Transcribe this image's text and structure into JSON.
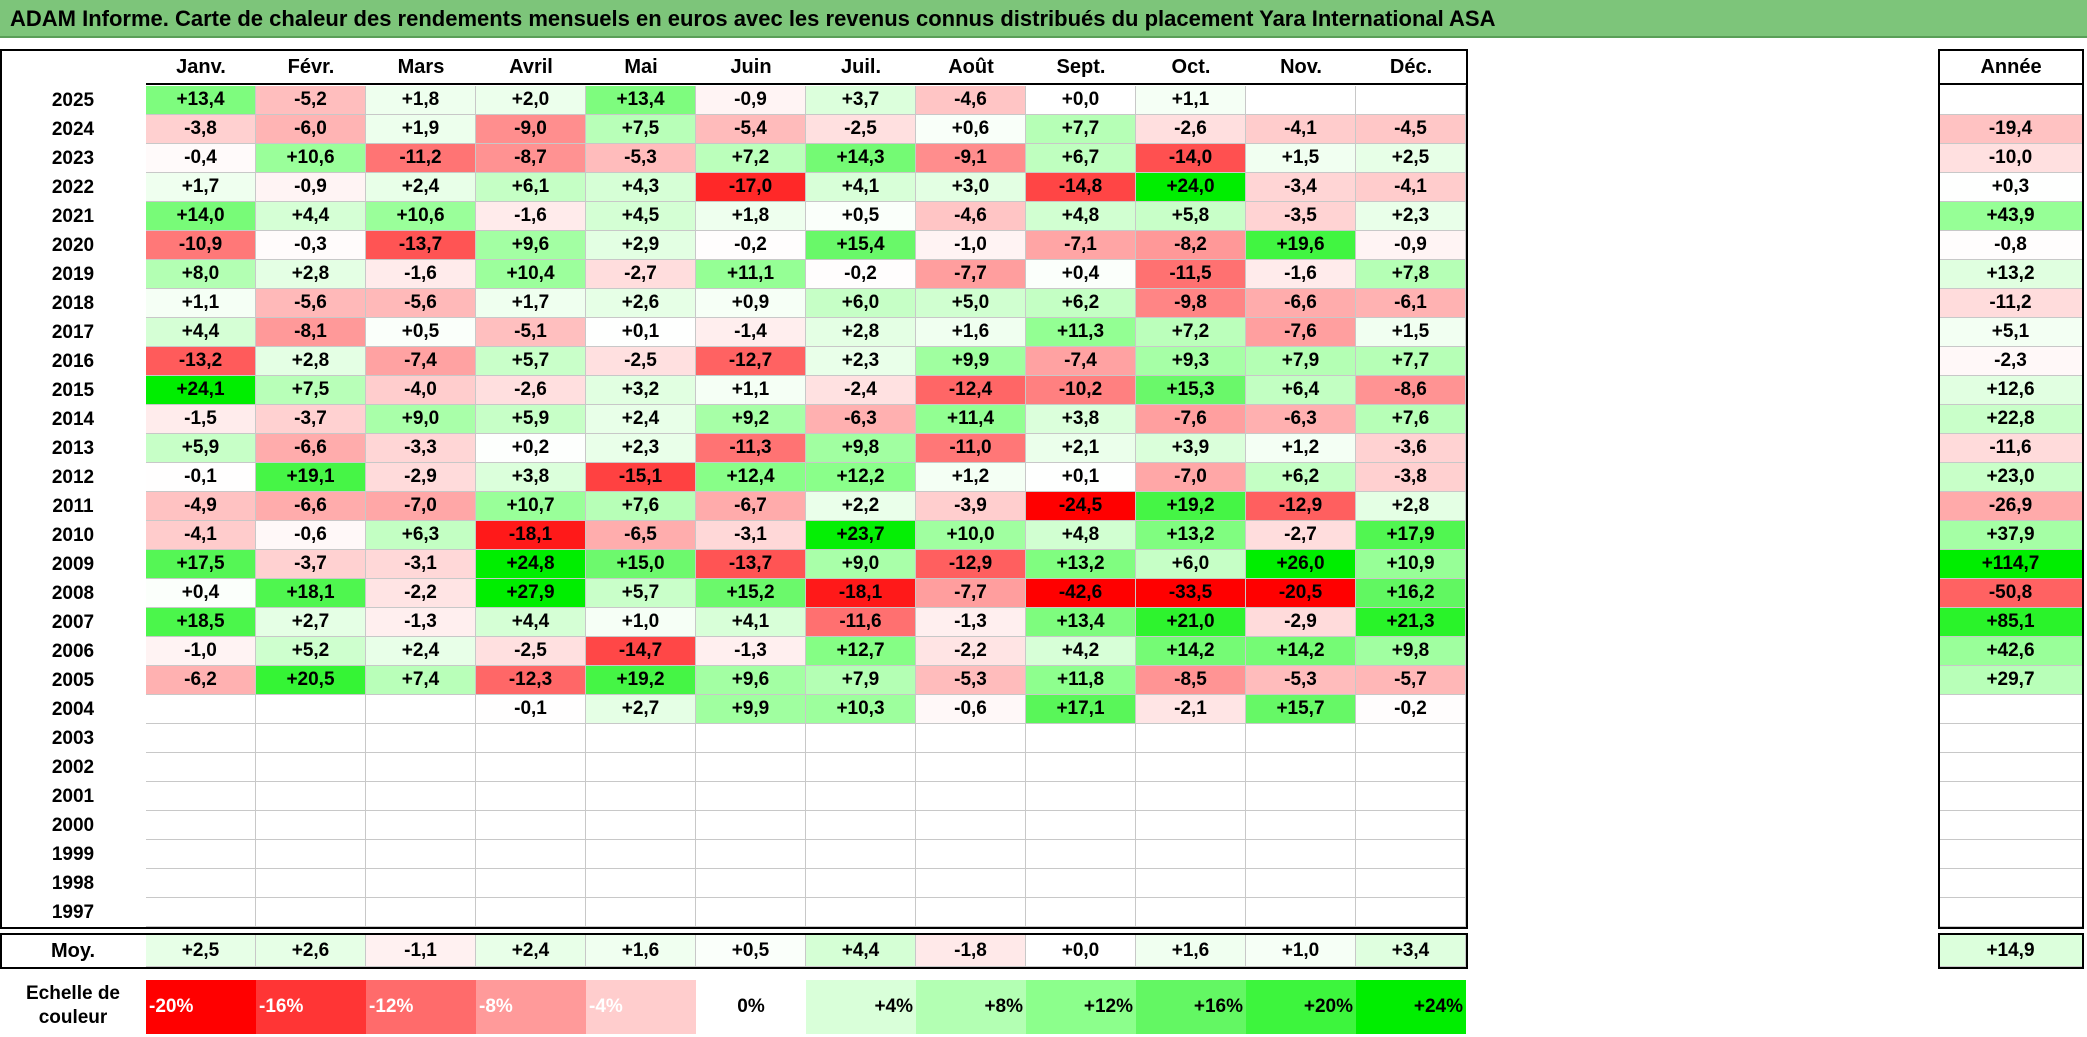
{
  "title": "ADAM Informe. Carte de chaleur des rendements mensuels en euros avec les revenus connus distribués du placement Yara International ASA",
  "chart_data": {
    "type": "heatmap",
    "title": "ADAM Informe. Carte de chaleur des rendements mensuels en euros avec les revenus connus distribués du placement Yara International ASA",
    "columns": [
      "Janv.",
      "Févr.",
      "Mars",
      "Avril",
      "Mai",
      "Juin",
      "Juil.",
      "Août",
      "Sept.",
      "Oct.",
      "Nov.",
      "Déc."
    ],
    "year_column_label": "Année",
    "rows": [
      {
        "year": "2025",
        "values": [
          "+13,4",
          "-5,2",
          "+1,8",
          "+2,0",
          "+13,4",
          "-0,9",
          "+3,7",
          "-4,6",
          "+0,0",
          "+1,1",
          "",
          ""
        ],
        "annual": ""
      },
      {
        "year": "2024",
        "values": [
          "-3,8",
          "-6,0",
          "+1,9",
          "-9,0",
          "+7,5",
          "-5,4",
          "-2,5",
          "+0,6",
          "+7,7",
          "-2,6",
          "-4,1",
          "-4,5"
        ],
        "annual": "-19,4"
      },
      {
        "year": "2023",
        "values": [
          "-0,4",
          "+10,6",
          "-11,2",
          "-8,7",
          "-5,3",
          "+7,2",
          "+14,3",
          "-9,1",
          "+6,7",
          "-14,0",
          "+1,5",
          "+2,5"
        ],
        "annual": "-10,0"
      },
      {
        "year": "2022",
        "values": [
          "+1,7",
          "-0,9",
          "+2,4",
          "+6,1",
          "+4,3",
          "-17,0",
          "+4,1",
          "+3,0",
          "-14,8",
          "+24,0",
          "-3,4",
          "-4,1"
        ],
        "annual": "+0,3"
      },
      {
        "year": "2021",
        "values": [
          "+14,0",
          "+4,4",
          "+10,6",
          "-1,6",
          "+4,5",
          "+1,8",
          "+0,5",
          "-4,6",
          "+4,8",
          "+5,8",
          "-3,5",
          "+2,3"
        ],
        "annual": "+43,9"
      },
      {
        "year": "2020",
        "values": [
          "-10,9",
          "-0,3",
          "-13,7",
          "+9,6",
          "+2,9",
          "-0,2",
          "+15,4",
          "-1,0",
          "-7,1",
          "-8,2",
          "+19,6",
          "-0,9"
        ],
        "annual": "-0,8"
      },
      {
        "year": "2019",
        "values": [
          "+8,0",
          "+2,8",
          "-1,6",
          "+10,4",
          "-2,7",
          "+11,1",
          "-0,2",
          "-7,7",
          "+0,4",
          "-11,5",
          "-1,6",
          "+7,8"
        ],
        "annual": "+13,2"
      },
      {
        "year": "2018",
        "values": [
          "+1,1",
          "-5,6",
          "-5,6",
          "+1,7",
          "+2,6",
          "+0,9",
          "+6,0",
          "+5,0",
          "+6,2",
          "-9,8",
          "-6,6",
          "-6,1"
        ],
        "annual": "-11,2"
      },
      {
        "year": "2017",
        "values": [
          "+4,4",
          "-8,1",
          "+0,5",
          "-5,1",
          "+0,1",
          "-1,4",
          "+2,8",
          "+1,6",
          "+11,3",
          "+7,2",
          "-7,6",
          "+1,5"
        ],
        "annual": "+5,1"
      },
      {
        "year": "2016",
        "values": [
          "-13,2",
          "+2,8",
          "-7,4",
          "+5,7",
          "-2,5",
          "-12,7",
          "+2,3",
          "+9,9",
          "-7,4",
          "+9,3",
          "+7,9",
          "+7,7"
        ],
        "annual": "-2,3"
      },
      {
        "year": "2015",
        "values": [
          "+24,1",
          "+7,5",
          "-4,0",
          "-2,6",
          "+3,2",
          "+1,1",
          "-2,4",
          "-12,4",
          "-10,2",
          "+15,3",
          "+6,4",
          "-8,6"
        ],
        "annual": "+12,6"
      },
      {
        "year": "2014",
        "values": [
          "-1,5",
          "-3,7",
          "+9,0",
          "+5,9",
          "+2,4",
          "+9,2",
          "-6,3",
          "+11,4",
          "+3,8",
          "-7,6",
          "-6,3",
          "+7,6"
        ],
        "annual": "+22,8"
      },
      {
        "year": "2013",
        "values": [
          "+5,9",
          "-6,6",
          "-3,3",
          "+0,2",
          "+2,3",
          "-11,3",
          "+9,8",
          "-11,0",
          "+2,1",
          "+3,9",
          "+1,2",
          "-3,6"
        ],
        "annual": "-11,6"
      },
      {
        "year": "2012",
        "values": [
          "-0,1",
          "+19,1",
          "-2,9",
          "+3,8",
          "-15,1",
          "+12,4",
          "+12,2",
          "+1,2",
          "+0,1",
          "-7,0",
          "+6,2",
          "-3,8"
        ],
        "annual": "+23,0"
      },
      {
        "year": "2011",
        "values": [
          "-4,9",
          "-6,6",
          "-7,0",
          "+10,7",
          "+7,6",
          "-6,7",
          "+2,2",
          "-3,9",
          "-24,5",
          "+19,2",
          "-12,9",
          "+2,8"
        ],
        "annual": "-26,9"
      },
      {
        "year": "2010",
        "values": [
          "-4,1",
          "-0,6",
          "+6,3",
          "-18,1",
          "-6,5",
          "-3,1",
          "+23,7",
          "+10,0",
          "+4,8",
          "+13,2",
          "-2,7",
          "+17,9"
        ],
        "annual": "+37,9"
      },
      {
        "year": "2009",
        "values": [
          "+17,5",
          "-3,7",
          "-3,1",
          "+24,8",
          "+15,0",
          "-13,7",
          "+9,0",
          "-12,9",
          "+13,2",
          "+6,0",
          "+26,0",
          "+10,9"
        ],
        "annual": "+114,7"
      },
      {
        "year": "2008",
        "values": [
          "+0,4",
          "+18,1",
          "-2,2",
          "+27,9",
          "+5,7",
          "+15,2",
          "-18,1",
          "-7,7",
          "-42,6",
          "-33,5",
          "-20,5",
          "+16,2"
        ],
        "annual": "-50,8"
      },
      {
        "year": "2007",
        "values": [
          "+18,5",
          "+2,7",
          "-1,3",
          "+4,4",
          "+1,0",
          "+4,1",
          "-11,6",
          "-1,3",
          "+13,4",
          "+21,0",
          "-2,9",
          "+21,3"
        ],
        "annual": "+85,1"
      },
      {
        "year": "2006",
        "values": [
          "-1,0",
          "+5,2",
          "+2,4",
          "-2,5",
          "-14,7",
          "-1,3",
          "+12,7",
          "-2,2",
          "+4,2",
          "+14,2",
          "+14,2",
          "+9,8"
        ],
        "annual": "+42,6"
      },
      {
        "year": "2005",
        "values": [
          "-6,2",
          "+20,5",
          "+7,4",
          "-12,3",
          "+19,2",
          "+9,6",
          "+7,9",
          "-5,3",
          "+11,8",
          "-8,5",
          "-5,3",
          "-5,7"
        ],
        "annual": "+29,7"
      },
      {
        "year": "2004",
        "values": [
          "",
          "",
          "",
          "-0,1",
          "+2,7",
          "+9,9",
          "+10,3",
          "-0,6",
          "+17,1",
          "-2,1",
          "+15,7",
          "-0,2"
        ],
        "annual": ""
      },
      {
        "year": "2003",
        "values": [
          "",
          "",
          "",
          "",
          "",
          "",
          "",
          "",
          "",
          "",
          "",
          ""
        ],
        "annual": ""
      },
      {
        "year": "2002",
        "values": [
          "",
          "",
          "",
          "",
          "",
          "",
          "",
          "",
          "",
          "",
          "",
          ""
        ],
        "annual": ""
      },
      {
        "year": "2001",
        "values": [
          "",
          "",
          "",
          "",
          "",
          "",
          "",
          "",
          "",
          "",
          "",
          ""
        ],
        "annual": ""
      },
      {
        "year": "2000",
        "values": [
          "",
          "",
          "",
          "",
          "",
          "",
          "",
          "",
          "",
          "",
          "",
          ""
        ],
        "annual": ""
      },
      {
        "year": "1999",
        "values": [
          "",
          "",
          "",
          "",
          "",
          "",
          "",
          "",
          "",
          "",
          "",
          ""
        ],
        "annual": ""
      },
      {
        "year": "1998",
        "values": [
          "",
          "",
          "",
          "",
          "",
          "",
          "",
          "",
          "",
          "",
          "",
          ""
        ],
        "annual": ""
      },
      {
        "year": "1997",
        "values": [
          "",
          "",
          "",
          "",
          "",
          "",
          "",
          "",
          "",
          "",
          "",
          ""
        ],
        "annual": ""
      }
    ],
    "average": {
      "label": "Moy.",
      "values": [
        "+2,5",
        "+2,6",
        "-1,1",
        "+2,4",
        "+1,6",
        "+0,5",
        "+4,4",
        "-1,8",
        "+0,0",
        "+1,6",
        "+1,0",
        "+3,4"
      ],
      "annual": "+14,9"
    },
    "color_scale": {
      "label_line1": "Echelle de",
      "label_line2": "couleur",
      "steps": [
        {
          "label": "-20%",
          "color": "#ff0000"
        },
        {
          "label": "-16%",
          "color": "#ff3535"
        },
        {
          "label": "-12%",
          "color": "#ff6b6b"
        },
        {
          "label": "-8%",
          "color": "#ff9a9a"
        },
        {
          "label": "-4%",
          "color": "#ffcdcd"
        },
        {
          "label": "0%",
          "color": "#ffffff"
        },
        {
          "label": "+4%",
          "color": "#d9ffd9"
        },
        {
          "label": "+8%",
          "color": "#b3ffb3"
        },
        {
          "label": "+12%",
          "color": "#8cff8c"
        },
        {
          "label": "+16%",
          "color": "#63f763"
        },
        {
          "label": "+20%",
          "color": "#3df53d"
        },
        {
          "label": "+24%",
          "color": "#00ee00"
        }
      ]
    }
  }
}
